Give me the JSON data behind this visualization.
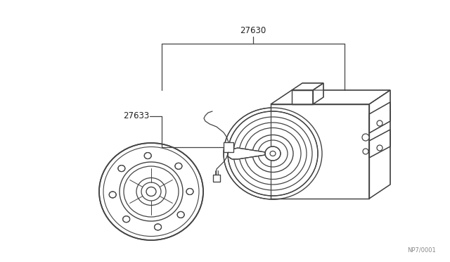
{
  "background_color": "#ffffff",
  "line_color": "#444444",
  "label_27630": "27630",
  "label_27633": "27633",
  "watermark": "NP7/0001",
  "fig_width": 6.4,
  "fig_height": 3.72,
  "dpi": 100,
  "lw": 0.9
}
